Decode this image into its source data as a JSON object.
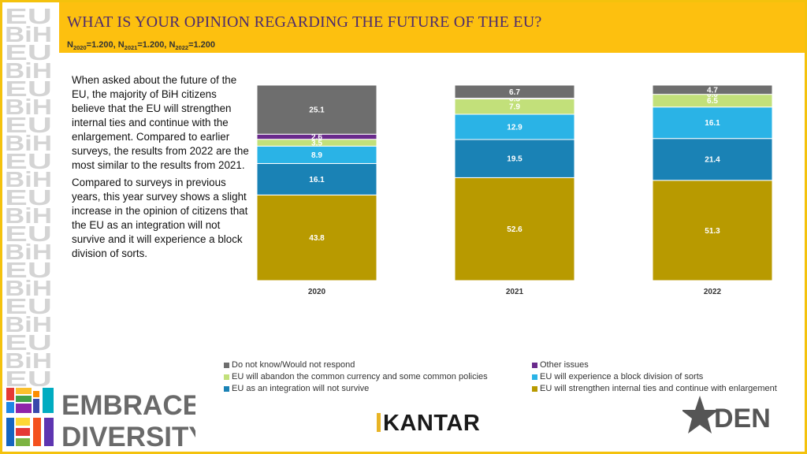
{
  "header": {
    "title": "WHAT IS YOUR OPINION REGARDING THE FUTURE OF THE EU?",
    "sample": [
      {
        "n": "N",
        "sub": "2020",
        "val": "=1.200, "
      },
      {
        "n": "N",
        "sub": "2021",
        "val": "=1.200, "
      },
      {
        "n": "N",
        "sub": "2022",
        "val": "=1.200"
      }
    ]
  },
  "paragraphs": [
    "When asked about the future of the EU, the majority of BiH citizens believe that the EU will strengthen internal ties and continue with the enlargement. Compared to earlier surveys, the results from 2022 are the most similar to the results from 2021.",
    "Compared to surveys in previous years, this year survey shows a slight increase in the opinion of citizens that the EU as an integration will not survive and it will experience a block division of sorts."
  ],
  "chart_data": {
    "type": "bar",
    "stacked": true,
    "normalized": true,
    "categories": [
      "2020",
      "2021",
      "2022"
    ],
    "series": [
      {
        "name": "EU will strengthen internal ties and continue with enlargement",
        "color": "#b89a00",
        "values": [
          43.8,
          52.6,
          51.3
        ]
      },
      {
        "name": "EU as an integration will not survive",
        "color": "#1a82b5",
        "values": [
          16.1,
          19.5,
          21.4
        ]
      },
      {
        "name": "EU will experience a block division of sorts",
        "color": "#2ab3e6",
        "values": [
          8.9,
          12.9,
          16.1
        ]
      },
      {
        "name": "EU will abandon the common currency and some common policies",
        "color": "#c2e07a",
        "values": [
          3.5,
          7.9,
          6.5
        ]
      },
      {
        "name": "Other issues",
        "color": "#6a2a8c",
        "values": [
          2.6,
          0.3,
          0.0
        ]
      },
      {
        "name": "Do not know/Would not respond",
        "color": "#6e6e6e",
        "values": [
          25.1,
          6.7,
          4.7
        ]
      }
    ],
    "legend": [
      {
        "name": "Do not know/Would not respond",
        "color": "#6e6e6e"
      },
      {
        "name": "Other issues",
        "color": "#6a2a8c"
      },
      {
        "name": "EU will abandon the common currency and some common policies",
        "color": "#c2e07a"
      },
      {
        "name": "EU will experience a block division of sorts",
        "color": "#2ab3e6"
      },
      {
        "name": "EU as an integration will not survive",
        "color": "#1a82b5"
      },
      {
        "name": "EU will strengthen internal ties and continue with enlargement",
        "color": "#b89a00"
      }
    ],
    "legend_position": "bottom",
    "grid": false
  },
  "logos": {
    "embrace_line1": "EMBRACE",
    "embrace_line2": "DIVERSITY",
    "bih": "BiH",
    "eu": "EU",
    "kantar": "KANTAR",
    "den": "DEN"
  },
  "colors": {
    "accent": "#fdc00f",
    "title": "#4d2b6d"
  }
}
